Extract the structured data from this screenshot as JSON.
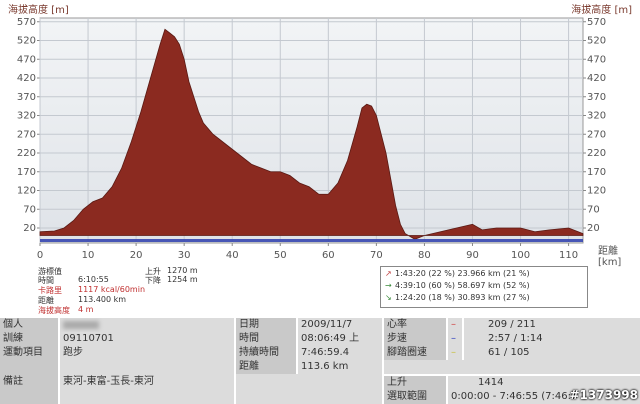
{
  "chart_data": {
    "type": "area",
    "y_axis_label": "海拔高度 [m]",
    "x_axis_label": "距離",
    "x_axis_unit": "[km]",
    "x": [
      0,
      3,
      5,
      7,
      9,
      11,
      13,
      15,
      17,
      19,
      21,
      23,
      25,
      26,
      27,
      28,
      29,
      30,
      31,
      32,
      33,
      34,
      36,
      38,
      40,
      42,
      44,
      46,
      48,
      50,
      52,
      54,
      56,
      58,
      60,
      62,
      64,
      66,
      67,
      68,
      69,
      70,
      71,
      72,
      73,
      74,
      75,
      76,
      78,
      80,
      85,
      90,
      92,
      95,
      100,
      103,
      106,
      110,
      112,
      113
    ],
    "values": [
      10,
      12,
      20,
      40,
      70,
      90,
      100,
      130,
      180,
      250,
      330,
      420,
      510,
      550,
      540,
      530,
      510,
      470,
      410,
      370,
      330,
      300,
      270,
      250,
      230,
      210,
      190,
      180,
      170,
      170,
      160,
      140,
      130,
      110,
      110,
      140,
      200,
      290,
      340,
      350,
      345,
      320,
      270,
      220,
      150,
      80,
      30,
      5,
      -10,
      0,
      15,
      30,
      15,
      20,
      20,
      10,
      15,
      20,
      10,
      5
    ],
    "color": "#8b2a20",
    "xlim": [
      0,
      113
    ],
    "ylim": [
      -20,
      580
    ],
    "xticks": [
      0,
      10,
      20,
      30,
      40,
      50,
      60,
      70,
      80,
      90,
      100,
      110
    ],
    "yticks": [
      20,
      70,
      120,
      170,
      220,
      270,
      320,
      370,
      420,
      470,
      520,
      570
    ],
    "grid": true
  },
  "cursor": {
    "title": "游標值",
    "rows": [
      {
        "label": "時間",
        "value": "6:10:55"
      },
      {
        "label": "卡路里",
        "value": "1117 kcal/60min"
      },
      {
        "label": "距離",
        "value": "113.400 km"
      },
      {
        "label": "海拔高度",
        "value": "4 m"
      }
    ]
  },
  "climb": [
    {
      "label": "上升",
      "value": "1270 m"
    },
    {
      "label": "下降",
      "value": "1254 m"
    }
  ],
  "zones": [
    "1:43:20 (22 %) 23.966 km (21 %)",
    "4:39:10 (60 %) 58.697 km (52 %)",
    "1:24:20 (18 %) 30.893 km (27 %)"
  ],
  "table": {
    "personal": {
      "label": "個人"
    },
    "training": {
      "label": "訓練",
      "value": "09110701"
    },
    "sport": {
      "label": "運動項目",
      "value": "跑步"
    },
    "notes": {
      "label": "備註",
      "value": "東河-東富-玉長-東河"
    },
    "date": {
      "label": "日期",
      "value": "2009/11/7"
    },
    "time": {
      "label": "時間",
      "value": "08:06:49 上"
    },
    "duration": {
      "label": "持續時間",
      "value": "7:46:59.4"
    },
    "distance": {
      "label": "距離",
      "value": "113.6 km"
    },
    "heart_rate": {
      "label": "心率",
      "value": "209 / 211"
    },
    "pace": {
      "label": "步速",
      "value": "2:57 / 1:14"
    },
    "cadence": {
      "label": "腳踏圈速",
      "value": "61 / 105"
    },
    "ascent": {
      "label": "上升",
      "value": "1414"
    },
    "range": {
      "label": "選取範圍",
      "value": "0:00:00 - 7:46:55 (7:46:5"
    }
  },
  "watermark": "#1373998"
}
